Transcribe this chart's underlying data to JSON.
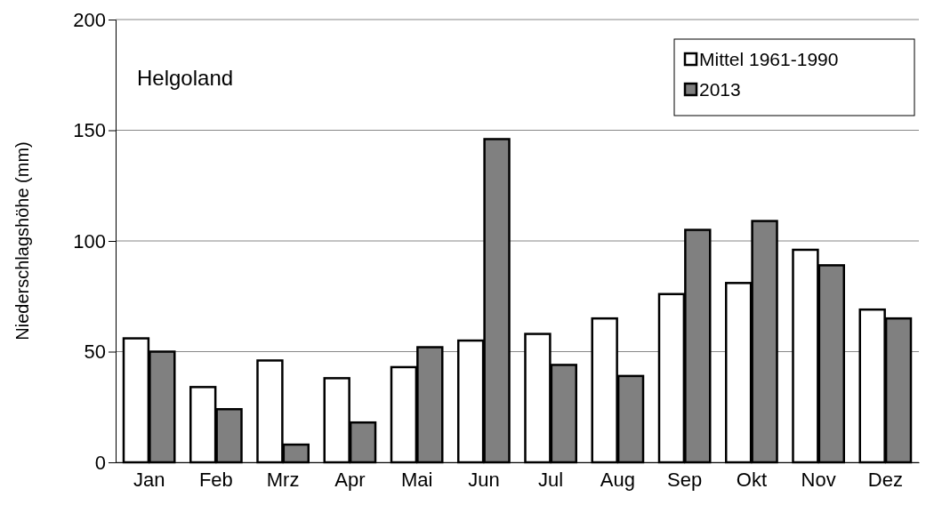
{
  "chart_data": {
    "type": "bar",
    "ylabel": "Niederschlagshöhe (mm)",
    "annotations": [
      "Helgoland"
    ],
    "categories": [
      "Jan",
      "Feb",
      "Mrz",
      "Apr",
      "Mai",
      "Jun",
      "Jul",
      "Aug",
      "Sep",
      "Okt",
      "Nov",
      "Dez"
    ],
    "series": [
      {
        "name": "Mittel 1961-1990",
        "color": "#ffffff",
        "values": [
          56,
          34,
          46,
          38,
          43,
          55,
          58,
          65,
          76,
          81,
          96,
          69
        ]
      },
      {
        "name": "2013",
        "color": "#808080",
        "values": [
          50,
          24,
          8,
          18,
          52,
          146,
          44,
          39,
          105,
          109,
          89,
          65
        ]
      }
    ],
    "ylim": [
      0,
      200
    ],
    "yticks": [
      0,
      50,
      100,
      150,
      200
    ],
    "grid": "y",
    "legend": "top right"
  }
}
